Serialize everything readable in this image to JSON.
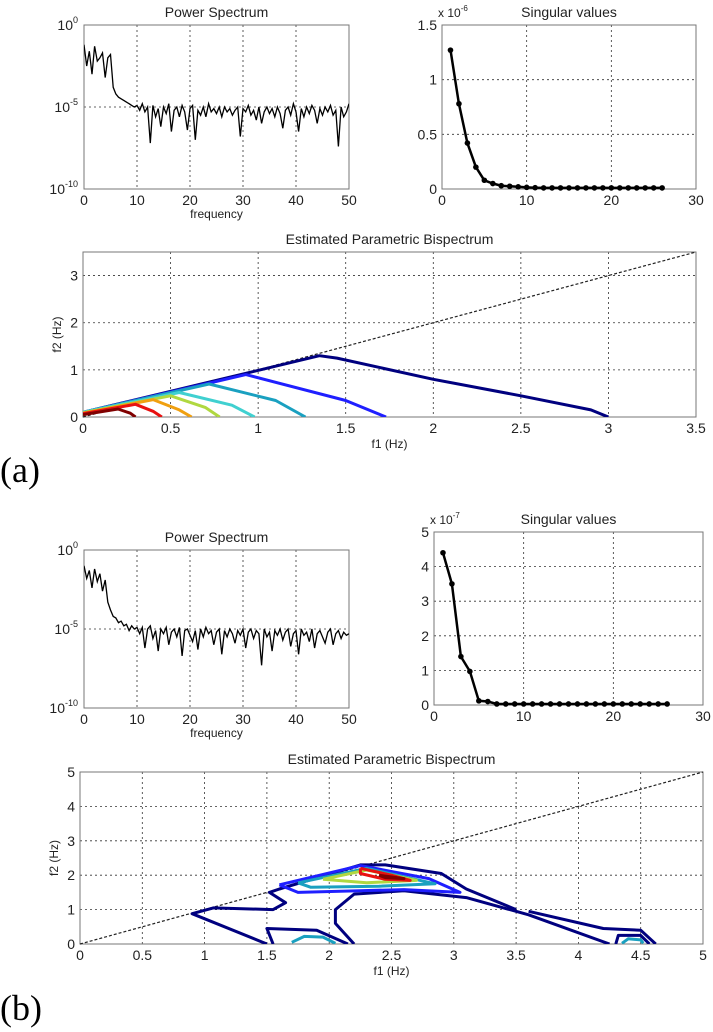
{
  "panels": [
    "(a)",
    "(b)"
  ],
  "chart_data": [
    {
      "type": "line",
      "panel": "(a)",
      "title": "Power Spectrum",
      "xlabel": "frequency",
      "ylabel": "",
      "xlim": [
        0,
        50
      ],
      "ylim_log10": [
        -10,
        0
      ],
      "yscale": "log",
      "grid": true,
      "xticks": [
        0,
        10,
        20,
        30,
        40,
        50
      ],
      "yticks": [
        {
          "value": 0,
          "base": "10",
          "sup": "0"
        },
        {
          "value": -5,
          "base": "10",
          "sup": "-5"
        },
        {
          "value": -10,
          "base": "10",
          "sup": "-10"
        }
      ],
      "log10_power": [
        -1.2,
        -2.5,
        -1.6,
        -3,
        -1.3,
        -2.2,
        -2,
        -1.7,
        -3.2,
        -2,
        -1.8,
        -3.8,
        -4.2,
        -4.4,
        -4.5,
        -4.6,
        -4.7,
        -4.8,
        -4.9,
        -5.0,
        -4.9,
        -5.2,
        -4.8,
        -5.3,
        -5.0,
        -7.2,
        -4.9,
        -5.6,
        -5.1,
        -6.2,
        -5.0,
        -5.4,
        -4.8,
        -6.5,
        -5.2,
        -5.0,
        -5.6,
        -4.9,
        -5.3,
        -6.4,
        -5.1,
        -4.9,
        -7.0,
        -5.2,
        -5.5,
        -5.0,
        -5.6,
        -4.8,
        -5.3,
        -5.1,
        -5.4,
        -5.0,
        -5.6,
        -5.0,
        -5.3,
        -5.1,
        -5.5,
        -5.2,
        -5.0,
        -6.8,
        -5.1,
        -5.3,
        -4.9,
        -5.5,
        -5.2,
        -5.8,
        -5.0,
        -6.0,
        -5.3,
        -5.0,
        -5.4,
        -5.1,
        -5.6,
        -5.0,
        -5.4,
        -6.3,
        -5.2,
        -5.0,
        -5.5,
        -4.8,
        -5.3,
        -6.5,
        -5.1,
        -5.6,
        -5.0,
        -5.4,
        -4.9,
        -5.2,
        -6.0,
        -5.1,
        -5.5,
        -5.0,
        -5.3,
        -4.9,
        -5.5,
        -5.2,
        -7.4,
        -5.0,
        -5.6,
        -5.3,
        -4.8
      ]
    },
    {
      "type": "line",
      "panel": "(a)",
      "title": "Singular values",
      "xlabel": "",
      "ylabel": "",
      "xlim": [
        0,
        30
      ],
      "ylim": [
        0,
        1.5
      ],
      "multiplier": {
        "base": "x 10",
        "sup": "-6"
      },
      "grid": true,
      "xticks": [
        0,
        10,
        20,
        30
      ],
      "yticks": [
        0,
        0.5,
        1,
        1.5
      ],
      "x": [
        1,
        2,
        3,
        4,
        5,
        6,
        7,
        8,
        9,
        10,
        11,
        12,
        13,
        14,
        15,
        16,
        17,
        18,
        19,
        20,
        21,
        22,
        23,
        24,
        25,
        26
      ],
      "y": [
        1.27,
        0.78,
        0.42,
        0.2,
        0.08,
        0.05,
        0.03,
        0.025,
        0.02,
        0.015,
        0.012,
        0.01,
        0.01,
        0.01,
        0.01,
        0.01,
        0.01,
        0.01,
        0.01,
        0.01,
        0.01,
        0.01,
        0.01,
        0.01,
        0.01,
        0.01
      ]
    },
    {
      "type": "contour",
      "panel": "(a)",
      "title": "Estimated Parametric Bispectrum",
      "xlabel": "f1 (Hz)",
      "ylabel": "f2 (Hz)",
      "xlim": [
        0,
        3.5
      ],
      "ylim": [
        0,
        3.5
      ],
      "grid": true,
      "xticks": [
        0,
        0.5,
        1,
        1.5,
        2,
        2.5,
        3,
        3.5
      ],
      "yticks": [
        0,
        1,
        2,
        3
      ],
      "diagonal": "f2 = f1",
      "contours": [
        {
          "color": "#00007f",
          "points": [
            [
              0,
              0.1
            ],
            [
              1.35,
              1.3
            ],
            [
              1.45,
              1.25
            ],
            [
              2,
              0.8
            ],
            [
              2.5,
              0.45
            ],
            [
              2.9,
              0.15
            ],
            [
              3,
              0
            ]
          ]
        },
        {
          "color": "#1f1fff",
          "points": [
            [
              0,
              0.1
            ],
            [
              0.93,
              0.9
            ],
            [
              1.5,
              0.35
            ],
            [
              1.73,
              0
            ]
          ]
        },
        {
          "color": "#1aa0c0",
          "points": [
            [
              0,
              0.1
            ],
            [
              0.72,
              0.7
            ],
            [
              1.1,
              0.35
            ],
            [
              1.27,
              0
            ]
          ]
        },
        {
          "color": "#40d0d0",
          "points": [
            [
              0,
              0.1
            ],
            [
              0.55,
              0.52
            ],
            [
              0.85,
              0.25
            ],
            [
              0.98,
              0
            ]
          ]
        },
        {
          "color": "#b0d840",
          "points": [
            [
              0,
              0.09
            ],
            [
              0.5,
              0.45
            ],
            [
              0.7,
              0.2
            ],
            [
              0.78,
              0
            ]
          ]
        },
        {
          "color": "#f0a010",
          "points": [
            [
              0,
              0.08
            ],
            [
              0.4,
              0.37
            ],
            [
              0.55,
              0.15
            ],
            [
              0.62,
              0
            ]
          ]
        },
        {
          "color": "#e81010",
          "points": [
            [
              0,
              0.07
            ],
            [
              0.3,
              0.27
            ],
            [
              0.4,
              0.12
            ],
            [
              0.45,
              0
            ]
          ]
        },
        {
          "color": "#800000",
          "points": [
            [
              0,
              0.05
            ],
            [
              0.2,
              0.17
            ],
            [
              0.27,
              0.08
            ],
            [
              0.3,
              0
            ]
          ]
        }
      ]
    },
    {
      "type": "line",
      "panel": "(b)",
      "title": "Power Spectrum",
      "xlabel": "frequency",
      "ylabel": "",
      "xlim": [
        0,
        50
      ],
      "ylim_log10": [
        -10,
        0
      ],
      "yscale": "log",
      "grid": true,
      "xticks": [
        0,
        10,
        20,
        30,
        40,
        50
      ],
      "yticks": [
        {
          "value": 0,
          "base": "10",
          "sup": "0"
        },
        {
          "value": -5,
          "base": "10",
          "sup": "-5"
        },
        {
          "value": -10,
          "base": "10",
          "sup": "-10"
        }
      ],
      "log10_power": [
        -1.0,
        -1.8,
        -1.3,
        -2.4,
        -1.2,
        -2.0,
        -1.5,
        -2.6,
        -1.9,
        -3.3,
        -3.8,
        -4.2,
        -4.3,
        -4.6,
        -4.5,
        -4.8,
        -4.7,
        -5.1,
        -4.8,
        -5.0,
        -4.9,
        -5.3,
        -4.9,
        -6.2,
        -5.0,
        -4.8,
        -5.6,
        -5.1,
        -6.4,
        -5.0,
        -5.3,
        -4.9,
        -6.0,
        -5.2,
        -5.0,
        -5.5,
        -4.9,
        -6.7,
        -5.1,
        -5.0,
        -5.4,
        -5.8,
        -5.1,
        -6.3,
        -5.0,
        -5.5,
        -4.9,
        -5.3,
        -5.1,
        -6.0,
        -5.2,
        -5.0,
        -6.6,
        -5.1,
        -5.5,
        -5.0,
        -5.3,
        -5.9,
        -5.1,
        -5.4,
        -5.0,
        -6.2,
        -5.2,
        -5.0,
        -5.6,
        -5.1,
        -5.3,
        -7.3,
        -5.0,
        -5.5,
        -5.2,
        -6.4,
        -5.1,
        -5.4,
        -5.0,
        -5.7,
        -5.2,
        -5.0,
        -6.1,
        -5.3,
        -5.1,
        -6.6,
        -5.0,
        -5.4,
        -5.2,
        -5.8,
        -5.0,
        -6.2,
        -5.3,
        -5.1,
        -5.5,
        -5.9,
        -5.2,
        -5.0,
        -6.0,
        -5.3,
        -5.1,
        -5.6,
        -5.2,
        -5.4,
        -5.3
      ]
    },
    {
      "type": "line",
      "panel": "(b)",
      "title": "Singular values",
      "xlabel": "",
      "ylabel": "",
      "xlim": [
        0,
        30
      ],
      "ylim": [
        0,
        5
      ],
      "multiplier": {
        "base": "x 10",
        "sup": "-7"
      },
      "grid": true,
      "xticks": [
        0,
        10,
        20,
        30
      ],
      "yticks": [
        0,
        1,
        2,
        3,
        4,
        5
      ],
      "x": [
        1,
        2,
        3,
        4,
        5,
        6,
        7,
        8,
        9,
        10,
        11,
        12,
        13,
        14,
        15,
        16,
        17,
        18,
        19,
        20,
        21,
        22,
        23,
        24,
        25,
        26
      ],
      "y": [
        4.4,
        3.5,
        1.4,
        0.97,
        0.12,
        0.1,
        0.03,
        0.03,
        0.03,
        0.03,
        0.03,
        0.03,
        0.03,
        0.03,
        0.03,
        0.03,
        0.03,
        0.03,
        0.03,
        0.03,
        0.03,
        0.03,
        0.03,
        0.03,
        0.03,
        0.03
      ]
    },
    {
      "type": "contour",
      "panel": "(b)",
      "title": "Estimated Parametric Bispectrum",
      "xlabel": "f1 (Hz)",
      "ylabel": "f2 (Hz)",
      "xlim": [
        0,
        5
      ],
      "ylim": [
        0,
        5
      ],
      "grid": true,
      "xticks": [
        0,
        0.5,
        1,
        1.5,
        2,
        2.5,
        3,
        3.5,
        4,
        4.5,
        5
      ],
      "yticks": [
        0,
        1,
        2,
        3,
        4,
        5
      ],
      "diagonal": "f2 = f1",
      "contours": [
        {
          "color": "#00007f",
          "points": [
            [
              1.5,
              0
            ],
            [
              0.9,
              0.88
            ],
            [
              1.07,
              1.05
            ],
            [
              1.55,
              1.0
            ],
            [
              1.65,
              1.2
            ],
            [
              1.52,
              1.5
            ],
            [
              1.6,
              1.6
            ],
            [
              2.25,
              2.3
            ],
            [
              2.45,
              2.3
            ],
            [
              2.9,
              2.05
            ],
            [
              3.1,
              1.6
            ],
            [
              3.5,
              1.0
            ]
          ]
        },
        {
          "color": "#00007f",
          "points": [
            [
              3.6,
              0.95
            ],
            [
              4.2,
              0.45
            ],
            [
              4.5,
              0.4
            ],
            [
              4.62,
              0
            ]
          ]
        },
        {
          "color": "#00007f",
          "points": [
            [
              4.25,
              0
            ],
            [
              3.6,
              0.85
            ],
            [
              3.1,
              1.35
            ],
            [
              2.6,
              1.55
            ],
            [
              2.2,
              1.45
            ],
            [
              2.05,
              1.0
            ],
            [
              2.05,
              0.6
            ],
            [
              2.2,
              0
            ]
          ]
        },
        {
          "color": "#00007f",
          "points": [
            [
              1.55,
              0
            ],
            [
              1.5,
              0.45
            ],
            [
              1.9,
              0.4
            ],
            [
              2.15,
              0
            ]
          ]
        },
        {
          "color": "#00007f",
          "points": [
            [
              4.3,
              0
            ],
            [
              4.32,
              0.25
            ],
            [
              4.5,
              0.25
            ],
            [
              4.57,
              0
            ]
          ]
        },
        {
          "color": "#1f1fff",
          "points": [
            [
              1.6,
              1.72
            ],
            [
              2.25,
              2.28
            ],
            [
              2.8,
              1.9
            ],
            [
              3.05,
              1.5
            ],
            [
              2.6,
              1.58
            ],
            [
              1.75,
              1.5
            ],
            [
              1.6,
              1.72
            ]
          ]
        },
        {
          "color": "#1aa0c0",
          "points": [
            [
              1.75,
              1.78
            ],
            [
              2.3,
              2.2
            ],
            [
              2.85,
              1.75
            ],
            [
              2.4,
              1.68
            ],
            [
              1.85,
              1.65
            ],
            [
              1.75,
              1.78
            ]
          ]
        },
        {
          "color": "#1aa0c0",
          "points": [
            [
              1.7,
              0.05
            ],
            [
              1.8,
              0.22
            ],
            [
              1.95,
              0.2
            ],
            [
              2.05,
              0.02
            ]
          ]
        },
        {
          "color": "#1aa0c0",
          "points": [
            [
              4.35,
              0.02
            ],
            [
              4.4,
              0.15
            ],
            [
              4.5,
              0.12
            ],
            [
              4.52,
              0.02
            ]
          ]
        },
        {
          "color": "#b0d840",
          "points": [
            [
              1.95,
              1.88
            ],
            [
              2.3,
              2.15
            ],
            [
              2.7,
              1.85
            ],
            [
              2.3,
              1.78
            ],
            [
              1.95,
              1.88
            ]
          ]
        },
        {
          "color": "#e81010",
          "points": [
            [
              2.25,
              2.2
            ],
            [
              2.5,
              2.0
            ],
            [
              2.65,
              1.85
            ],
            [
              2.45,
              1.88
            ],
            [
              2.25,
              2.05
            ],
            [
              2.25,
              2.2
            ]
          ]
        },
        {
          "color": "#800000",
          "points": [
            [
              2.4,
              2.0
            ],
            [
              2.6,
              1.9
            ],
            [
              2.45,
              1.93
            ],
            [
              2.4,
              2.0
            ]
          ]
        }
      ]
    }
  ]
}
